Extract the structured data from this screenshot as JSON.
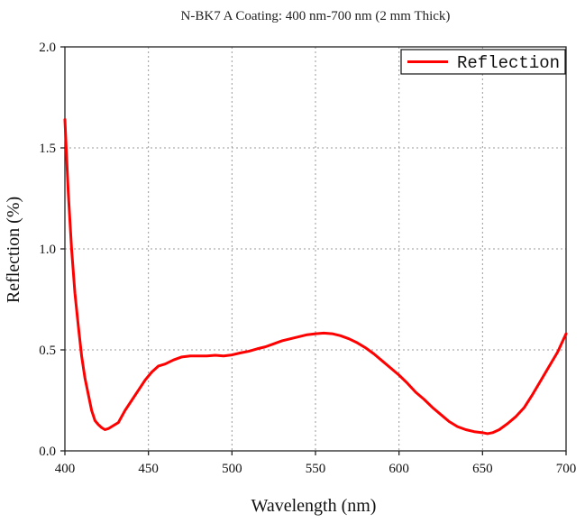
{
  "chart_data": {
    "type": "line",
    "title": "N-BK7 A Coating: 400 nm-700 nm (2 mm Thick)",
    "xlabel": "Wavelength (nm)",
    "ylabel": "Reflection (%)",
    "xlim": [
      400,
      700
    ],
    "ylim": [
      0.0,
      2.0
    ],
    "xticks": [
      400,
      450,
      500,
      550,
      600,
      650,
      700
    ],
    "yticks": [
      0.0,
      0.5,
      1.0,
      1.5,
      2.0
    ],
    "xtick_labels": [
      "400",
      "450",
      "500",
      "550",
      "600",
      "650",
      "700"
    ],
    "ytick_labels": [
      "0.0",
      "0.5",
      "1.0",
      "1.5",
      "2.0"
    ],
    "grid": true,
    "legend": {
      "position": "top-right",
      "entries": [
        "Reflection"
      ]
    },
    "series": [
      {
        "name": "Reflection",
        "color": "#ff0000",
        "points": [
          [
            400,
            1.64
          ],
          [
            402,
            1.28
          ],
          [
            404,
            1.0
          ],
          [
            406,
            0.78
          ],
          [
            408,
            0.62
          ],
          [
            410,
            0.47
          ],
          [
            412,
            0.36
          ],
          [
            414,
            0.28
          ],
          [
            416,
            0.2
          ],
          [
            418,
            0.15
          ],
          [
            420,
            0.13
          ],
          [
            422,
            0.115
          ],
          [
            424,
            0.105
          ],
          [
            426,
            0.11
          ],
          [
            428,
            0.12
          ],
          [
            432,
            0.14
          ],
          [
            436,
            0.2
          ],
          [
            440,
            0.25
          ],
          [
            444,
            0.3
          ],
          [
            448,
            0.35
          ],
          [
            452,
            0.39
          ],
          [
            456,
            0.42
          ],
          [
            460,
            0.43
          ],
          [
            465,
            0.45
          ],
          [
            470,
            0.465
          ],
          [
            475,
            0.47
          ],
          [
            480,
            0.47
          ],
          [
            485,
            0.47
          ],
          [
            490,
            0.473
          ],
          [
            495,
            0.47
          ],
          [
            500,
            0.475
          ],
          [
            505,
            0.485
          ],
          [
            510,
            0.493
          ],
          [
            515,
            0.505
          ],
          [
            520,
            0.515
          ],
          [
            525,
            0.53
          ],
          [
            530,
            0.545
          ],
          [
            535,
            0.555
          ],
          [
            540,
            0.565
          ],
          [
            545,
            0.575
          ],
          [
            550,
            0.58
          ],
          [
            555,
            0.583
          ],
          [
            560,
            0.58
          ],
          [
            565,
            0.57
          ],
          [
            570,
            0.555
          ],
          [
            575,
            0.535
          ],
          [
            580,
            0.51
          ],
          [
            585,
            0.48
          ],
          [
            590,
            0.445
          ],
          [
            595,
            0.41
          ],
          [
            600,
            0.375
          ],
          [
            605,
            0.335
          ],
          [
            610,
            0.29
          ],
          [
            615,
            0.255
          ],
          [
            620,
            0.215
          ],
          [
            625,
            0.18
          ],
          [
            630,
            0.145
          ],
          [
            635,
            0.12
          ],
          [
            640,
            0.105
          ],
          [
            645,
            0.095
          ],
          [
            650,
            0.09
          ],
          [
            653,
            0.085
          ],
          [
            656,
            0.09
          ],
          [
            660,
            0.105
          ],
          [
            665,
            0.135
          ],
          [
            670,
            0.17
          ],
          [
            675,
            0.215
          ],
          [
            680,
            0.28
          ],
          [
            685,
            0.35
          ],
          [
            690,
            0.42
          ],
          [
            695,
            0.49
          ],
          [
            700,
            0.58
          ]
        ]
      }
    ]
  },
  "colors": {
    "series": "#ff0000",
    "grid": "#9a9a9a",
    "axis": "#222222"
  }
}
